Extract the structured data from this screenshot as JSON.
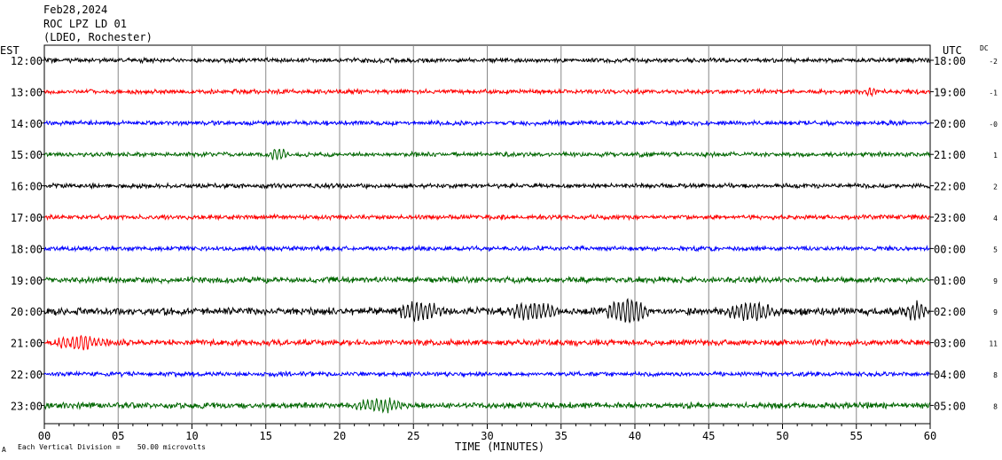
{
  "header": {
    "date": "Feb28,2024",
    "station": "ROC LPZ LD 01",
    "network": "(LDEO, Rochester)"
  },
  "left_zone": "EST",
  "right_zone": "UTC",
  "dc_label": "DC",
  "footer": {
    "division_text": "Each Vertical Division =    50.00 microvolts",
    "corner_mark": "A"
  },
  "chart_data": {
    "type": "line",
    "title": "",
    "xlabel": "TIME (MINUTES)",
    "xlim": [
      0,
      60
    ],
    "x_ticks": [
      "00",
      "05",
      "10",
      "15",
      "20",
      "25",
      "30",
      "35",
      "40",
      "45",
      "50",
      "55",
      "60"
    ],
    "grid": "vertical lines every 5 minutes",
    "series": [
      {
        "left_label": "12:00",
        "right_label": "18:00",
        "dc": "-2",
        "color": "#000000",
        "amp": 3,
        "events": []
      },
      {
        "left_label": "13:00",
        "right_label": "19:00",
        "dc": "-1",
        "color": "#ff0000",
        "amp": 3,
        "events": [
          {
            "at": 56,
            "dur": 0.6,
            "amp": 4
          }
        ]
      },
      {
        "left_label": "14:00",
        "right_label": "20:00",
        "dc": "-0",
        "color": "#0000ff",
        "amp": 3,
        "events": []
      },
      {
        "left_label": "15:00",
        "right_label": "21:00",
        "dc": "1",
        "color": "#006600",
        "amp": 3,
        "events": [
          {
            "at": 15.9,
            "dur": 0.8,
            "amp": 6
          }
        ]
      },
      {
        "left_label": "16:00",
        "right_label": "22:00",
        "dc": "2",
        "color": "#000000",
        "amp": 3,
        "events": []
      },
      {
        "left_label": "17:00",
        "right_label": "23:00",
        "dc": "4",
        "color": "#ff0000",
        "amp": 3,
        "events": []
      },
      {
        "left_label": "18:00",
        "right_label": "00:00",
        "dc": "5",
        "color": "#0000ff",
        "amp": 3,
        "events": []
      },
      {
        "left_label": "19:00",
        "right_label": "01:00",
        "dc": "9",
        "color": "#006600",
        "amp": 4,
        "events": []
      },
      {
        "left_label": "20:00",
        "right_label": "02:00",
        "dc": "9",
        "color": "#000000",
        "amp": 5,
        "events": [
          {
            "at": 25.5,
            "dur": 2,
            "amp": 9
          },
          {
            "at": 33,
            "dur": 2,
            "amp": 9
          },
          {
            "at": 39.5,
            "dur": 1.8,
            "amp": 13
          },
          {
            "at": 48,
            "dur": 2,
            "amp": 9
          },
          {
            "at": 59,
            "dur": 1,
            "amp": 9
          }
        ]
      },
      {
        "left_label": "21:00",
        "right_label": "03:00",
        "dc": "11",
        "color": "#ff0000",
        "amp": 4,
        "events": [
          {
            "at": 2.5,
            "dur": 2,
            "amp": 7
          }
        ]
      },
      {
        "left_label": "22:00",
        "right_label": "04:00",
        "dc": "8",
        "color": "#0000ff",
        "amp": 3,
        "events": []
      },
      {
        "left_label": "23:00",
        "right_label": "05:00",
        "dc": "8",
        "color": "#006600",
        "amp": 4,
        "events": [
          {
            "at": 22.5,
            "dur": 2,
            "amp": 7
          }
        ]
      }
    ]
  }
}
